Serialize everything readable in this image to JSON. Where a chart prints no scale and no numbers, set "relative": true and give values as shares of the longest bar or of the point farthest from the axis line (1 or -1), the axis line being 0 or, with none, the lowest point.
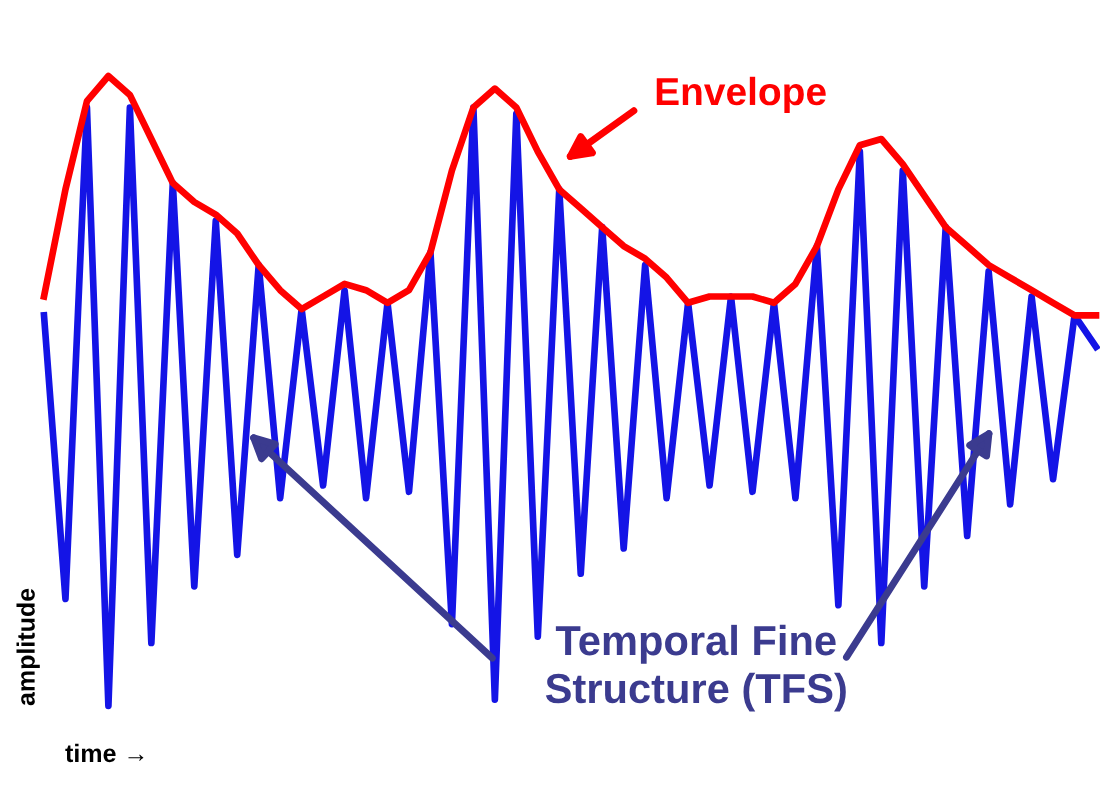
{
  "chart_data": {
    "type": "line",
    "relative": true,
    "xlabel": "time →",
    "ylabel": "amplitude",
    "marker": "none",
    "line_style": "solid",
    "categories": [
      null,
      null,
      null,
      null,
      null,
      null,
      null,
      null,
      null,
      null,
      null,
      null,
      null,
      null,
      null,
      null,
      null,
      null,
      null,
      null,
      null,
      null,
      null,
      null,
      null,
      null,
      null,
      null,
      null,
      null,
      null,
      null,
      null,
      null,
      null,
      null,
      null,
      null,
      null,
      null,
      null,
      null,
      null,
      null,
      null,
      null,
      null,
      null,
      null,
      null
    ],
    "series": [
      {
        "color": "#1414e6",
        "values": [
          0.62,
          0.17,
          0.95,
          0,
          0.95,
          0.1,
          0.83,
          0.19,
          0.77,
          0.24,
          0.7,
          0.33,
          0.63,
          0.35,
          0.66,
          0.33,
          0.64,
          0.34,
          0.72,
          0.13,
          0.95,
          0.01,
          0.94,
          0.11,
          0.82,
          0.21,
          0.76,
          0.25,
          0.7,
          0.33,
          0.64,
          0.35,
          0.65,
          0.34,
          0.64,
          0.33,
          0.73,
          0.16,
          0.88,
          0.1,
          0.85,
          0.19,
          0.76,
          0.27,
          0.69,
          0.32,
          0.65,
          0.36,
          0.62,
          0.57
        ]
      },
      {
        "color": "#ff0000",
        "values": [
          0.65,
          0.82,
          0.96,
          1,
          0.97,
          0.9,
          0.83,
          0.8,
          0.78,
          0.75,
          0.7,
          0.66,
          0.63,
          0.65,
          0.67,
          0.66,
          0.64,
          0.66,
          0.72,
          0.85,
          0.95,
          0.98,
          0.95,
          0.88,
          0.82,
          0.79,
          0.76,
          0.73,
          0.71,
          0.68,
          0.64,
          0.65,
          0.65,
          0.65,
          0.64,
          0.67,
          0.73,
          0.82,
          0.89,
          0.9,
          0.86,
          0.81,
          0.76,
          0.73,
          0.7,
          0.68,
          0.66,
          0.64,
          0.62,
          0.62
        ]
      }
    ],
    "annotations": [
      "Envelope",
      "Temporal Fine\nStructure (TFS)"
    ]
  }
}
